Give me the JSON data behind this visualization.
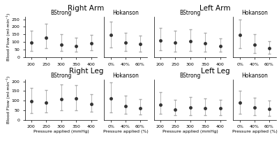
{
  "panels": [
    {
      "title": "Right Arm",
      "subplots": [
        {
          "label": "BStrong",
          "x": [
            200,
            250,
            300,
            350,
            400
          ],
          "y": [
            95,
            130,
            85,
            75,
            90
          ],
          "yerr_lo": [
            55,
            70,
            45,
            40,
            45
          ],
          "yerr_hi": [
            80,
            90,
            65,
            55,
            55
          ],
          "xlabel": ""
        },
        {
          "label": "Hokanson",
          "x_labels": [
            "0%",
            "40%",
            "60%"
          ],
          "y": [
            145,
            97,
            88
          ],
          "yerr_lo": [
            80,
            55,
            50
          ],
          "yerr_hi": [
            90,
            65,
            55
          ],
          "xlabel": ""
        }
      ],
      "ylabel": "Blood Flow (ml·min⁻¹)",
      "ylim": [
        0,
        265
      ],
      "yticks": [
        0,
        50,
        100,
        150,
        200,
        250
      ]
    },
    {
      "title": "Left Arm",
      "subplots": [
        {
          "label": "BStrong",
          "x": [
            200,
            250,
            300,
            350,
            400
          ],
          "y": [
            112,
            98,
            105,
            92,
            75
          ],
          "yerr_lo": [
            65,
            60,
            65,
            55,
            40
          ],
          "yerr_hi": [
            80,
            75,
            80,
            70,
            50
          ],
          "xlabel": ""
        },
        {
          "label": "Hokanson",
          "x_labels": [
            "0%",
            "40%",
            "60%"
          ],
          "y": [
            148,
            82,
            58
          ],
          "yerr_lo": [
            90,
            55,
            35
          ],
          "yerr_hi": [
            100,
            70,
            50
          ],
          "xlabel": ""
        }
      ],
      "ylabel": "Blood Flow (ml·min⁻¹)",
      "ylim": [
        0,
        265
      ],
      "yticks": [
        0,
        50,
        100,
        150,
        200,
        250
      ]
    },
    {
      "title": "Right Leg",
      "subplots": [
        {
          "label": "BStrong",
          "x": [
            200,
            250,
            300,
            350,
            400
          ],
          "y": [
            97,
            90,
            108,
            110,
            82
          ],
          "yerr_lo": [
            60,
            50,
            60,
            60,
            40
          ],
          "yerr_hi": [
            70,
            65,
            75,
            70,
            50
          ],
          "xlabel": "Pressure applied (mmHg)"
        },
        {
          "label": "Hokanson",
          "x_labels": [
            "0%",
            "40%",
            "60%"
          ],
          "y": [
            110,
            72,
            62
          ],
          "yerr_lo": [
            70,
            40,
            35
          ],
          "yerr_hi": [
            85,
            55,
            45
          ],
          "xlabel": "Pressure applied (%)"
        }
      ],
      "ylabel": "Blood Flow (ml·min⁻¹)",
      "ylim": [
        0,
        210
      ],
      "yticks": [
        0,
        50,
        100,
        150,
        200
      ]
    },
    {
      "title": "Left Leg",
      "subplots": [
        {
          "label": "BStrong",
          "x": [
            200,
            250,
            300,
            350,
            400
          ],
          "y": [
            80,
            55,
            65,
            60,
            60
          ],
          "yerr_lo": [
            50,
            30,
            40,
            35,
            35
          ],
          "yerr_hi": [
            65,
            50,
            55,
            50,
            45
          ],
          "xlabel": "Pressure applied (mmHg)"
        },
        {
          "label": "Hokanson",
          "x_labels": [
            "0%",
            "40%",
            "60%"
          ],
          "y": [
            88,
            65,
            57
          ],
          "yerr_lo": [
            55,
            40,
            35
          ],
          "yerr_hi": [
            65,
            50,
            42
          ],
          "xlabel": "Pressure applied (%)"
        }
      ],
      "ylabel": "Blood Flow (ml·min⁻¹)",
      "ylim": [
        0,
        210
      ],
      "yticks": [
        0,
        50,
        100,
        150,
        200
      ]
    }
  ],
  "line_color": "#aaaaaa",
  "marker": "o",
  "marker_size": 2.5,
  "marker_color": "#333333",
  "capsize": 1.5,
  "elinewidth": 0.6,
  "linewidth": 0.8,
  "sublabel_fontsize": 5.5,
  "panel_title_fontsize": 7.5,
  "tick_fontsize": 4.5,
  "axis_label_fontsize": 4.5,
  "ylabel_fontsize": 4.5
}
